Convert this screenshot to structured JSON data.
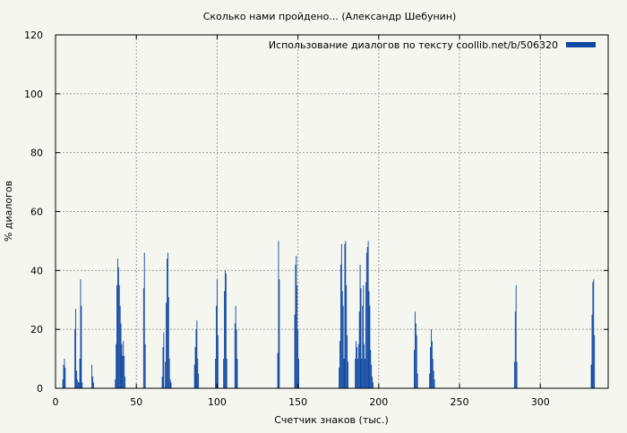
{
  "chart_data": {
    "type": "bar",
    "title": "Сколько нами пройдено... (Александр Шебунин)",
    "xlabel": "Счетчик знаков (тыс.)",
    "ylabel": "% диалогов",
    "xlim": [
      0,
      342
    ],
    "ylim": [
      0,
      120
    ],
    "xticks": [
      0,
      50,
      100,
      150,
      200,
      250,
      300
    ],
    "yticks": [
      0,
      20,
      40,
      60,
      80,
      100,
      120
    ],
    "grid": true,
    "legend_position": "top-right",
    "series": [
      {
        "name": "Использование диалогов по тексту  coollib.net/b/506320",
        "color": "#0d47a1",
        "x": [
          4.5,
          5,
          5.5,
          6,
          12,
          12.5,
          13,
          13.5,
          14,
          14.5,
          15,
          15.5,
          16,
          16.5,
          22.5,
          23,
          23.5,
          37,
          37.5,
          38,
          38.5,
          39,
          39.5,
          40,
          40.5,
          41,
          41.5,
          42,
          42.5,
          43,
          54.5,
          55,
          55.5,
          66,
          66.5,
          67,
          68,
          68.5,
          69,
          69.5,
          70,
          70.5,
          71,
          71.5,
          86,
          86.5,
          87,
          87.5,
          88,
          88.5,
          99,
          99.5,
          100,
          100.5,
          104,
          104.5,
          105,
          105.5,
          106,
          111,
          111.5,
          112,
          112.5,
          137.5,
          138,
          138.5,
          148,
          148.5,
          149,
          149.5,
          150,
          150.5,
          175.5,
          176,
          176.5,
          177,
          177.5,
          178,
          178.5,
          179,
          179.5,
          180,
          180.5,
          181,
          185.5,
          186,
          186.5,
          187,
          187.5,
          188,
          188.5,
          189,
          189.5,
          190,
          190.5,
          191,
          191.5,
          192,
          192.5,
          193,
          193.5,
          194,
          194.5,
          195,
          195.5,
          196,
          196.5,
          222,
          222.5,
          223,
          223.5,
          224,
          231.5,
          232,
          232.5,
          233,
          233.5,
          234,
          234.5,
          284,
          284.5,
          285,
          285.5,
          331.5,
          332,
          332.5,
          333,
          333.5
        ],
        "values": [
          3,
          8,
          10,
          7,
          20,
          27,
          6,
          3,
          2,
          2,
          10,
          37,
          28,
          2,
          8,
          4,
          2,
          3,
          15,
          35,
          44,
          41,
          35,
          28,
          22,
          15,
          11,
          16,
          11,
          4,
          34,
          46,
          15,
          4,
          14,
          19,
          9,
          29,
          44,
          46,
          31,
          10,
          3,
          2,
          8,
          14,
          20,
          23,
          10,
          5,
          10,
          28,
          37,
          18,
          10,
          33,
          40,
          39,
          10,
          22,
          28,
          20,
          10,
          12,
          50,
          37,
          25,
          42,
          45,
          35,
          20,
          10,
          7,
          16,
          42,
          49,
          33,
          28,
          10,
          49,
          50,
          35,
          18,
          9,
          10,
          16,
          14,
          10,
          15,
          26,
          42,
          34,
          10,
          28,
          35,
          15,
          10,
          36,
          46,
          48,
          50,
          33,
          28,
          13,
          8,
          4,
          2,
          13,
          26,
          22,
          18,
          5,
          5,
          14,
          20,
          16,
          10,
          6,
          3,
          9,
          26,
          35,
          9,
          8,
          25,
          36,
          37,
          18
        ]
      }
    ]
  }
}
